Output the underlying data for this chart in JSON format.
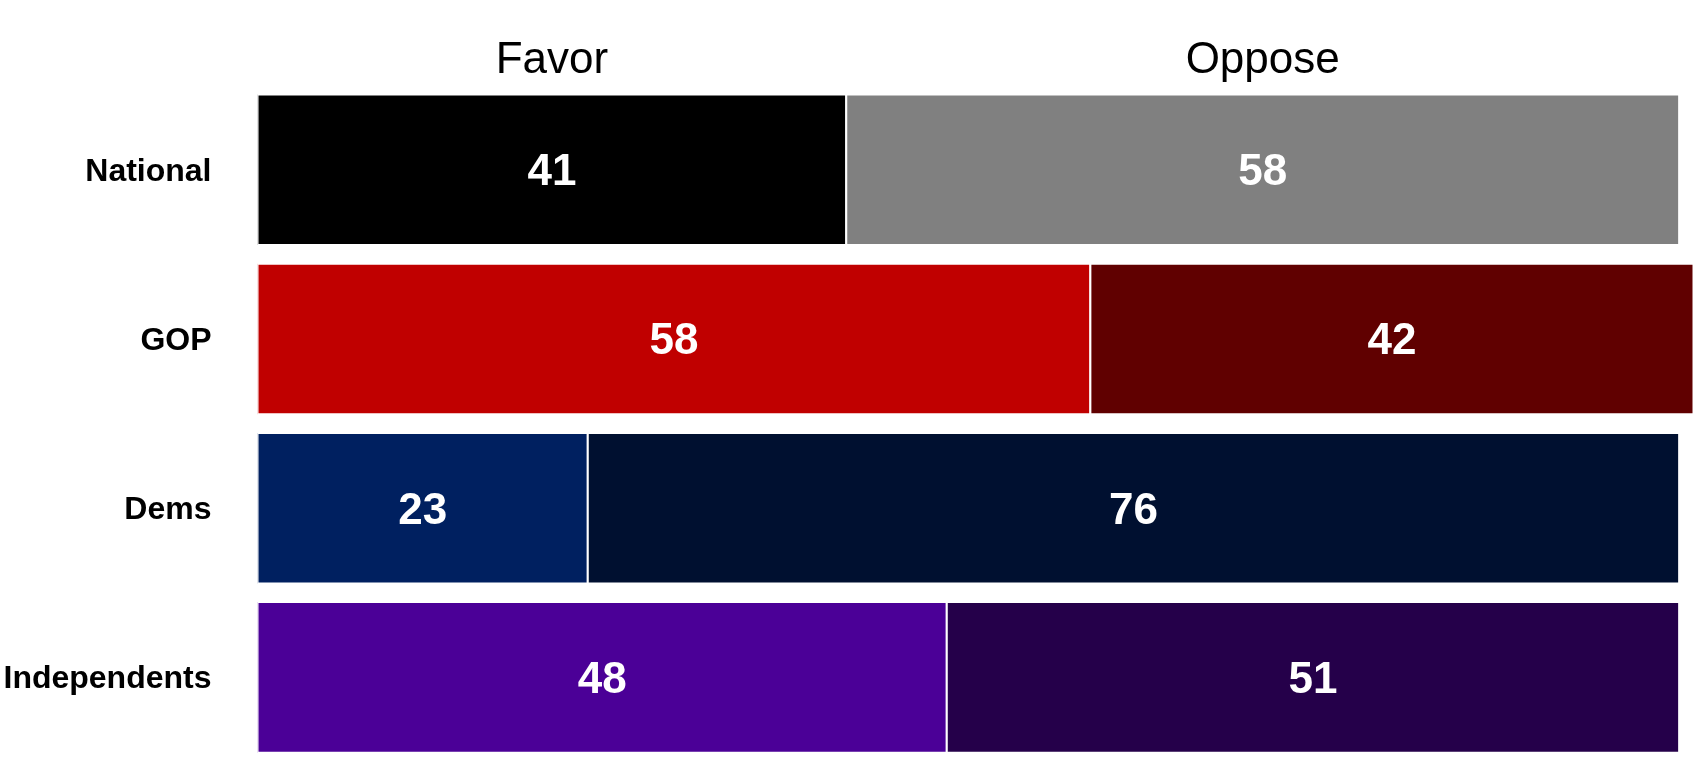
{
  "chart_data": {
    "type": "bar",
    "orientation": "horizontal",
    "stacked": true,
    "data_labels": true,
    "tick_labels": "y",
    "grid": false,
    "categories": [
      "National",
      "GOP",
      "Dems",
      "Independents"
    ],
    "series": [
      {
        "name": "Favor",
        "colors": [
          "#000000",
          "#c00000",
          "#002060",
          "#4b0097"
        ],
        "values": [
          41,
          58,
          23,
          48
        ]
      },
      {
        "name": "Oppose",
        "colors": [
          "#808080",
          "#600000",
          "#001030",
          "#25004a"
        ],
        "values": [
          58,
          42,
          76,
          51
        ]
      }
    ]
  }
}
